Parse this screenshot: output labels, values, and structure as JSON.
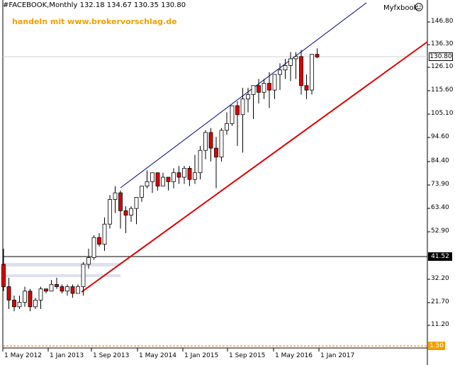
{
  "header": {
    "symbol": "#FACEBOOK,Monthly",
    "ohlc": "132.18 134.67 130.35 130.80"
  },
  "promo_text": "handeln mit www.brokervorschlag.de",
  "brand": {
    "label": "Myfxbook",
    "icon": "smiley-icon"
  },
  "price_tags": {
    "current": "130.80",
    "hline": "41.52",
    "bottom": "1.50"
  },
  "colors": {
    "bull": "#ffffff",
    "bear": "#dd0000",
    "trend": "#dd0000",
    "channel": "#000080",
    "hline": "#000000",
    "bottom_line": "#e07000",
    "promo": "#f0a000"
  },
  "chart_data": {
    "type": "candlestick",
    "title": "#FACEBOOK,Monthly",
    "y_ticks": [
      "146.80",
      "136.30",
      "126.10",
      "115.60",
      "105.10",
      "94.60",
      "84.40",
      "73.90",
      "63.40",
      "52.90",
      "41.52",
      "32.20",
      "21.70",
      "11.20",
      "1.50"
    ],
    "x_ticks": [
      "1 May 2012",
      "1 Jan 2013",
      "1 Sep 2013",
      "1 May 2014",
      "1 Jan 2015",
      "1 Sep 2015",
      "1 May 2016",
      "1 Jan 2017"
    ],
    "ylim": [
      1.5,
      151
    ],
    "first_month": "2012-05",
    "candles": [
      [
        38,
        45,
        26,
        28
      ],
      [
        28,
        32,
        18,
        22
      ],
      [
        22,
        24,
        17,
        19
      ],
      [
        19,
        24,
        18,
        21
      ],
      [
        21,
        28,
        19,
        26
      ],
      [
        26,
        27,
        17,
        19
      ],
      [
        19,
        23,
        18,
        22
      ],
      [
        22,
        28,
        18,
        27
      ],
      [
        27,
        27,
        25,
        26
      ],
      [
        26,
        31,
        26,
        29
      ],
      [
        29,
        32,
        27,
        28
      ],
      [
        28,
        29,
        25,
        26
      ],
      [
        26,
        29,
        24,
        28
      ],
      [
        28,
        29,
        23,
        25
      ],
      [
        25,
        29,
        25,
        28
      ],
      [
        28,
        39,
        24,
        38
      ],
      [
        38,
        45,
        36,
        41
      ],
      [
        41,
        51,
        40,
        50
      ],
      [
        50,
        52,
        46,
        47
      ],
      [
        47,
        59,
        44,
        56
      ],
      [
        56,
        69,
        54,
        67
      ],
      [
        67,
        73,
        61,
        70
      ],
      [
        70,
        71,
        54,
        62
      ],
      [
        62,
        64,
        52,
        60
      ],
      [
        60,
        64,
        57,
        63
      ],
      [
        63,
        68,
        56,
        68
      ],
      [
        68,
        73,
        66,
        73
      ],
      [
        73,
        80,
        72,
        75
      ],
      [
        75,
        79,
        70,
        79
      ],
      [
        79,
        79,
        71,
        73
      ],
      [
        73,
        79,
        73,
        77
      ],
      [
        77,
        77,
        71,
        75
      ],
      [
        75,
        81,
        72,
        79
      ],
      [
        79,
        82,
        74,
        77
      ],
      [
        77,
        82,
        74,
        81
      ],
      [
        81,
        82,
        73,
        76
      ],
      [
        76,
        87,
        74,
        79
      ],
      [
        79,
        91,
        76,
        89
      ],
      [
        89,
        98,
        85,
        97
      ],
      [
        97,
        99,
        84,
        90
      ],
      [
        90,
        95,
        72,
        86
      ],
      [
        86,
        99,
        84,
        98
      ],
      [
        98,
        106,
        96,
        101
      ],
      [
        101,
        109,
        100,
        109
      ],
      [
        109,
        111,
        91,
        105
      ],
      [
        105,
        117,
        88,
        112
      ],
      [
        112,
        117,
        106,
        114
      ],
      [
        114,
        117,
        103,
        118
      ],
      [
        118,
        121,
        110,
        115
      ],
      [
        115,
        121,
        112,
        119
      ],
      [
        119,
        124,
        108,
        116
      ],
      [
        116,
        123,
        112,
        123
      ],
      [
        123,
        128,
        116,
        125
      ],
      [
        125,
        130,
        121,
        127
      ],
      [
        127,
        133,
        120,
        130
      ],
      [
        130,
        133,
        121,
        131
      ],
      [
        131,
        134,
        114,
        118
      ],
      [
        118,
        123,
        112,
        116
      ],
      [
        116,
        132,
        114,
        132
      ],
      [
        132,
        134.67,
        130.35,
        130.8
      ]
    ]
  }
}
